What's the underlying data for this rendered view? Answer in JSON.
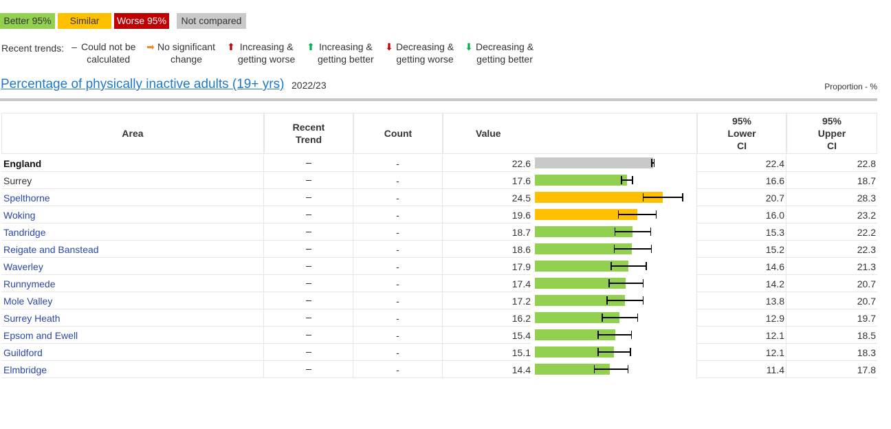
{
  "legend": {
    "better": "Better 95%",
    "similar": "Similar",
    "worse": "Worse 95%",
    "not_compared": "Not compared",
    "colors": {
      "better": "#92d050",
      "similar": "#ffc000",
      "worse": "#c00000",
      "not_compared": "#c9c9c9"
    }
  },
  "trends": {
    "label": "Recent trends:",
    "items": [
      {
        "icon": "dash-icon",
        "line1": "Could not be",
        "line2": "calculated",
        "color": "#333333"
      },
      {
        "icon": "arrow-right-icon",
        "line1": "No significant",
        "line2": "change",
        "color": "#f08a24"
      },
      {
        "icon": "arrow-up-icon",
        "line1": "Increasing &",
        "line2": "getting worse",
        "color": "#c00000"
      },
      {
        "icon": "arrow-up-icon",
        "line1": "Increasing &",
        "line2": "getting better",
        "color": "#00b050"
      },
      {
        "icon": "arrow-down-icon",
        "line1": "Decreasing &",
        "line2": "getting worse",
        "color": "#c00000"
      },
      {
        "icon": "arrow-down-icon",
        "line1": "Decreasing &",
        "line2": "getting better",
        "color": "#00b050"
      }
    ]
  },
  "indicator": {
    "title": "Percentage of physically inactive adults (19+ yrs) ",
    "period": "2022/23",
    "unit": "Proportion - %"
  },
  "table": {
    "headers": {
      "area": "Area",
      "trend_1": "Recent",
      "trend_2": "Trend",
      "count": "Count",
      "value": "Value",
      "lci_1": "95%",
      "lci_2": "Lower",
      "lci_3": "CI",
      "uci_1": "95%",
      "uci_2": "Upper",
      "uci_3": "CI"
    },
    "scale_max": 30,
    "rows": [
      {
        "area": "England",
        "count": "-",
        "value": 22.6,
        "lci": 22.4,
        "uci": 22.8,
        "status": "not_compared",
        "bold": true,
        "link": false
      },
      {
        "area": "Surrey",
        "count": "-",
        "value": 17.6,
        "lci": 16.6,
        "uci": 18.7,
        "status": "better",
        "bold": false,
        "link": false
      },
      {
        "area": "Spelthorne",
        "count": "-",
        "value": 24.5,
        "lci": 20.7,
        "uci": 28.3,
        "status": "similar",
        "bold": false,
        "link": true
      },
      {
        "area": "Woking",
        "count": "-",
        "value": 19.6,
        "lci": 16.0,
        "uci": 23.2,
        "status": "similar",
        "bold": false,
        "link": true
      },
      {
        "area": "Tandridge",
        "count": "-",
        "value": 18.7,
        "lci": 15.3,
        "uci": 22.2,
        "status": "better",
        "bold": false,
        "link": true
      },
      {
        "area": "Reigate and Banstead",
        "count": "-",
        "value": 18.6,
        "lci": 15.2,
        "uci": 22.3,
        "status": "better",
        "bold": false,
        "link": true
      },
      {
        "area": "Waverley",
        "count": "-",
        "value": 17.9,
        "lci": 14.6,
        "uci": 21.3,
        "status": "better",
        "bold": false,
        "link": true
      },
      {
        "area": "Runnymede",
        "count": "-",
        "value": 17.4,
        "lci": 14.2,
        "uci": 20.7,
        "status": "better",
        "bold": false,
        "link": true
      },
      {
        "area": "Mole Valley",
        "count": "-",
        "value": 17.2,
        "lci": 13.8,
        "uci": 20.7,
        "status": "better",
        "bold": false,
        "link": true
      },
      {
        "area": "Surrey Heath",
        "count": "-",
        "value": 16.2,
        "lci": 12.9,
        "uci": 19.7,
        "status": "better",
        "bold": false,
        "link": true
      },
      {
        "area": "Epsom and Ewell",
        "count": "-",
        "value": 15.4,
        "lci": 12.1,
        "uci": 18.5,
        "status": "better",
        "bold": false,
        "link": true
      },
      {
        "area": "Guildford",
        "count": "-",
        "value": 15.1,
        "lci": 12.1,
        "uci": 18.3,
        "status": "better",
        "bold": false,
        "link": true
      },
      {
        "area": "Elmbridge",
        "count": "-",
        "value": 14.4,
        "lci": 11.4,
        "uci": 17.8,
        "status": "better",
        "bold": false,
        "link": true
      }
    ]
  }
}
